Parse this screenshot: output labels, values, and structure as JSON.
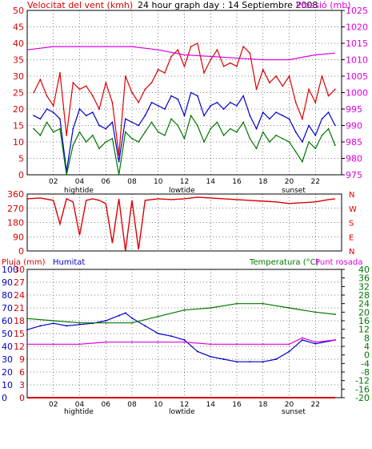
{
  "header": {
    "left_title": "Velocitat del vent (kmh)",
    "center_title": "24 hour graph day : 14 Septiembre 2008",
    "right_title": "Pressió (mb)"
  },
  "colors": {
    "red": "#dd0000",
    "blue": "#0000cc",
    "green": "#007700",
    "magenta": "#dd00dd",
    "grid": "#000000",
    "frame": "#000000"
  },
  "chart_data": [
    {
      "type": "line",
      "x_ticks": [
        "02",
        "04",
        "06",
        "08",
        "10",
        "12",
        "14",
        "16",
        "18",
        "20",
        "22"
      ],
      "x_annotations": [
        {
          "text": "hightide",
          "at": "04"
        },
        {
          "text": "lowtide",
          "at": "12"
        },
        {
          "text": "sunset",
          "at": "20"
        }
      ],
      "y_left": {
        "label": "Velocitat del vent (kmh)",
        "min": 0,
        "max": 50,
        "ticks": [
          0,
          5,
          10,
          15,
          20,
          25,
          30,
          35,
          40,
          45,
          50
        ]
      },
      "y_right": {
        "label": "Pressió (mb)",
        "min": 975,
        "max": 1025,
        "ticks": [
          975,
          980,
          985,
          990,
          995,
          1000,
          1005,
          1010,
          1015,
          1020,
          1025
        ]
      },
      "series": [
        {
          "color": "red",
          "axis": "left",
          "x": [
            0.5,
            1,
            1.5,
            2,
            2.5,
            3,
            3.5,
            4,
            4.5,
            5,
            5.5,
            6,
            6.5,
            7,
            7.5,
            8,
            8.5,
            9,
            9.5,
            10,
            10.5,
            11,
            11.5,
            12,
            12.5,
            13,
            13.5,
            14,
            14.5,
            15,
            15.5,
            16,
            16.5,
            17,
            17.5,
            18,
            18.5,
            19,
            19.5,
            20,
            20.5,
            21,
            21.5,
            22,
            22.5,
            23,
            23.5
          ],
          "y": [
            25,
            29,
            24,
            21,
            31,
            12,
            28,
            26,
            27,
            24,
            20,
            28,
            22,
            6,
            30,
            25,
            22,
            26,
            28,
            32,
            31,
            36,
            38,
            33,
            39,
            40,
            31,
            35,
            38,
            33,
            34,
            33,
            39,
            37,
            26,
            32,
            28,
            30,
            27,
            30,
            22,
            17,
            26,
            22,
            30,
            24,
            26
          ]
        },
        {
          "color": "blue",
          "axis": "left",
          "x": [
            0.5,
            1,
            1.5,
            2,
            2.5,
            3,
            3.5,
            4,
            4.5,
            5,
            5.5,
            6,
            6.5,
            7,
            7.5,
            8,
            8.5,
            9,
            9.5,
            10,
            10.5,
            11,
            11.5,
            12,
            12.5,
            13,
            13.5,
            14,
            14.5,
            15,
            15.5,
            16,
            16.5,
            17,
            17.5,
            18,
            18.5,
            19,
            19.5,
            20,
            20.5,
            21,
            21.5,
            22,
            22.5,
            23,
            23.5
          ],
          "y": [
            18,
            17,
            20,
            19,
            17,
            1,
            14,
            20,
            18,
            19,
            15,
            14,
            16,
            4,
            17,
            16,
            15,
            18,
            22,
            21,
            20,
            24,
            23,
            18,
            25,
            24,
            18,
            21,
            22,
            20,
            22,
            21,
            24,
            18,
            14,
            19,
            17,
            19,
            18,
            17,
            13,
            10,
            15,
            12,
            17,
            19,
            15
          ]
        },
        {
          "color": "green",
          "axis": "left",
          "x": [
            0.5,
            1,
            1.5,
            2,
            2.5,
            3,
            3.5,
            4,
            4.5,
            5,
            5.5,
            6,
            6.5,
            7,
            7.5,
            8,
            8.5,
            9,
            9.5,
            10,
            10.5,
            11,
            11.5,
            12,
            12.5,
            13,
            13.5,
            14,
            14.5,
            15,
            15.5,
            16,
            16.5,
            17,
            17.5,
            18,
            18.5,
            19,
            19.5,
            20,
            20.5,
            21,
            21.5,
            22,
            22.5,
            23,
            23.5
          ],
          "y": [
            14,
            12,
            16,
            13,
            14,
            0,
            9,
            13,
            10,
            12,
            8,
            10,
            11,
            0,
            13,
            11,
            10,
            13,
            16,
            13,
            12,
            17,
            15,
            11,
            18,
            15,
            10,
            14,
            16,
            12,
            14,
            13,
            16,
            11,
            8,
            13,
            10,
            12,
            11,
            10,
            7,
            4,
            10,
            8,
            12,
            14,
            9
          ]
        },
        {
          "color": "magenta",
          "axis": "right",
          "x": [
            0,
            2,
            4,
            6,
            8,
            10,
            12,
            14,
            16,
            18,
            20,
            22,
            23.5
          ],
          "y": [
            1013,
            1014,
            1014,
            1014,
            1014,
            1013,
            1011.5,
            1011,
            1010.5,
            1010,
            1010,
            1011.5,
            1012
          ]
        }
      ]
    },
    {
      "type": "line",
      "y_left": {
        "label": "",
        "min": 0,
        "max": 360,
        "ticks": [
          0,
          90,
          180,
          270,
          360
        ]
      },
      "y_right_labels": [
        "N",
        "W",
        "S",
        "E",
        "N"
      ],
      "series": [
        {
          "color": "red",
          "axis": "left",
          "x": [
            0,
            1,
            2,
            2.5,
            3,
            3.5,
            4,
            4.5,
            5,
            5.5,
            6,
            6.5,
            7,
            7.5,
            8,
            8.5,
            9,
            10,
            11,
            12,
            13,
            14,
            15,
            16,
            17,
            18,
            19,
            20,
            21,
            22,
            23,
            23.5
          ],
          "y": [
            330,
            335,
            320,
            170,
            330,
            310,
            100,
            320,
            330,
            320,
            300,
            50,
            330,
            0,
            320,
            10,
            320,
            330,
            325,
            330,
            340,
            335,
            330,
            325,
            320,
            315,
            310,
            300,
            305,
            310,
            325,
            330
          ]
        }
      ]
    },
    {
      "type": "line",
      "y_left_pluja": {
        "label": "Pluja (mm)",
        "min": 0,
        "max": 30,
        "ticks": [
          0,
          3,
          6,
          9,
          12,
          15,
          18,
          21,
          24,
          27,
          30
        ]
      },
      "y_left_humitat": {
        "label": "Humitat",
        "min": 0,
        "max": 100,
        "ticks": [
          0,
          10,
          20,
          30,
          40,
          50,
          60,
          70,
          80,
          90,
          100
        ]
      },
      "y_right": {
        "label": "Temperatura (°C)",
        "min": -20,
        "max": 40,
        "ticks": [
          -20,
          -16,
          -12,
          -8,
          -4,
          0,
          4,
          8,
          12,
          16,
          20,
          24,
          28,
          32,
          36,
          40
        ]
      },
      "right_label_2": "Punt rosada",
      "series": [
        {
          "color": "blue",
          "axis": "humitat",
          "x": [
            0,
            1,
            2,
            3,
            4,
            5,
            6,
            7,
            7.5,
            8,
            9,
            10,
            11,
            12,
            13,
            14,
            15,
            16,
            17,
            18,
            19,
            20,
            21,
            22,
            23,
            23.5
          ],
          "y": [
            53,
            56,
            58,
            56,
            57,
            58,
            60,
            64,
            66,
            62,
            56,
            50,
            48,
            45,
            36,
            32,
            30,
            28,
            28,
            28,
            30,
            36,
            45,
            42,
            44,
            45
          ]
        },
        {
          "color": "green",
          "axis": "right",
          "x": [
            0,
            2,
            4,
            6,
            8,
            10,
            12,
            14,
            16,
            18,
            20,
            22,
            23.5
          ],
          "y": [
            17,
            16,
            15,
            15,
            15,
            18,
            21,
            22,
            24,
            24,
            22,
            20,
            19
          ]
        },
        {
          "color": "magenta",
          "axis": "right",
          "x": [
            0,
            2,
            4,
            6,
            8,
            10,
            12,
            14,
            16,
            18,
            20,
            21,
            22,
            23.5
          ],
          "y": [
            5,
            5,
            5,
            6,
            6,
            6,
            6,
            5,
            5,
            5,
            5,
            8,
            6,
            7
          ]
        },
        {
          "color": "red",
          "axis": "pluja",
          "x": [
            0,
            23.5
          ],
          "y": [
            0,
            0
          ]
        }
      ]
    }
  ],
  "middle": {
    "y_ticks": [
      "0",
      "90",
      "180",
      "270",
      "360"
    ],
    "compass": [
      "N",
      "W",
      "S",
      "E",
      "N"
    ]
  },
  "bottom": {
    "pluja_label": "Pluja (mm)",
    "humitat_label": "Humitat",
    "temp_label": "Temperatura (°C)",
    "dew_label": "Punt rosada",
    "pluja_ticks": [
      "0",
      "3",
      "6",
      "9",
      "12",
      "15",
      "18",
      "21",
      "24",
      "27",
      "30"
    ],
    "humitat_ticks": [
      "0",
      "10",
      "20",
      "30",
      "40",
      "50",
      "60",
      "70",
      "80",
      "90",
      "100"
    ],
    "temp_ticks": [
      "-20",
      "-16",
      "-12",
      "-8",
      "-4",
      "0",
      "4",
      "8",
      "12",
      "16",
      "20",
      "24",
      "28",
      "32",
      "36",
      "40"
    ]
  },
  "top": {
    "left_ticks": [
      "0",
      "5",
      "10",
      "15",
      "20",
      "25",
      "30",
      "35",
      "40",
      "45",
      "50"
    ],
    "right_ticks": [
      "975",
      "980",
      "985",
      "990",
      "995",
      "1000",
      "1005",
      "1010",
      "1015",
      "1020",
      "1025"
    ]
  },
  "x_axis": {
    "ticks": [
      "02",
      "04",
      "06",
      "08",
      "10",
      "12",
      "14",
      "16",
      "18",
      "20",
      "22"
    ],
    "hightide": "hightide",
    "lowtide": "lowtide",
    "sunset": "sunset"
  }
}
